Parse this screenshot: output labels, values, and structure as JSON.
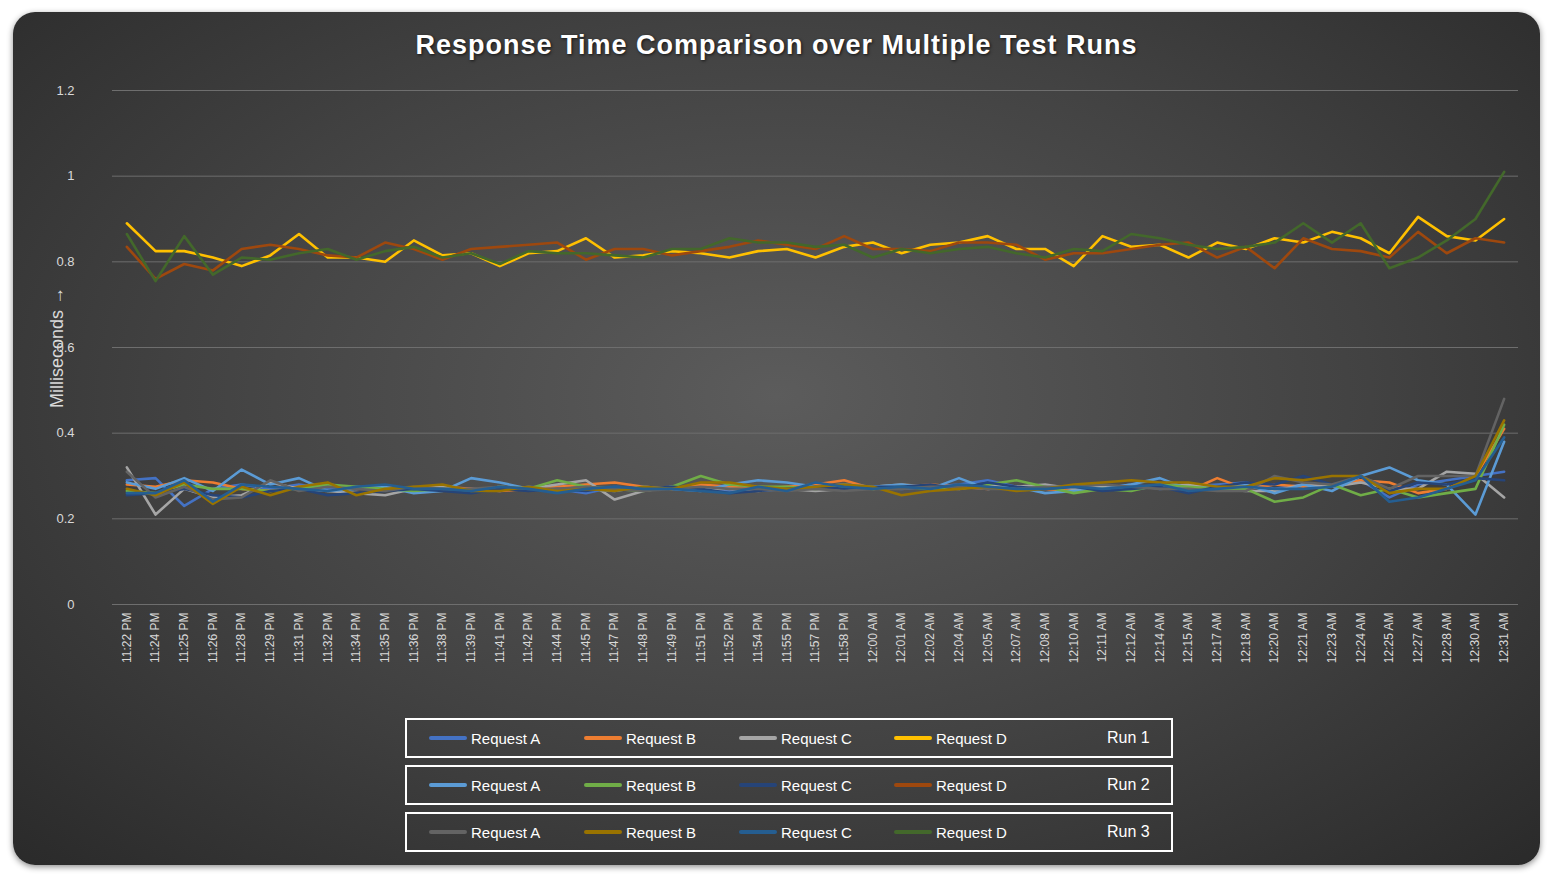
{
  "chart_data": {
    "type": "line",
    "title": "Response Time Comparison over Multiple Test Runs",
    "y_label": "Milliseconds",
    "x": [
      "11:22 PM",
      "11:24 PM",
      "11:25 PM",
      "11:26 PM",
      "11:28 PM",
      "11:29 PM",
      "11:31 PM",
      "11:32 PM",
      "11:34 PM",
      "11:35 PM",
      "11:36 PM",
      "11:38 PM",
      "11:39 PM",
      "11:41 PM",
      "11:42 PM",
      "11:44 PM",
      "11:45 PM",
      "11:47 PM",
      "11:48 PM",
      "11:49 PM",
      "11:51 PM",
      "11:52 PM",
      "11:54 PM",
      "11:55 PM",
      "11:57 PM",
      "11:58 PM",
      "12:00 AM",
      "12:01 AM",
      "12:02 AM",
      "12:04 AM",
      "12:05 AM",
      "12:07 AM",
      "12:08 AM",
      "12:10 AM",
      "12:11 AM",
      "12:12 AM",
      "12:14 AM",
      "12:15 AM",
      "12:17 AM",
      "12:18 AM",
      "12:20 AM",
      "12:21 AM",
      "12:23 AM",
      "12:24 AM",
      "12:25 AM",
      "12:27 AM",
      "12:28 AM",
      "12:30 AM",
      "12:31 AM"
    ],
    "ylim": [
      0,
      1.2
    ],
    "yticks": [
      0,
      0.2,
      0.4,
      0.6,
      0.8,
      1,
      1.2
    ],
    "grid": true,
    "legend": "bottom",
    "series": [
      {
        "name": "Request A",
        "run": "Run 1",
        "color": "#4472c4",
        "values": [
          0.29,
          0.295,
          0.23,
          0.27,
          0.28,
          0.27,
          0.28,
          0.27,
          0.275,
          0.27,
          0.265,
          0.27,
          0.27,
          0.265,
          0.275,
          0.27,
          0.26,
          0.275,
          0.27,
          0.275,
          0.27,
          0.265,
          0.275,
          0.27,
          0.28,
          0.275,
          0.275,
          0.27,
          0.275,
          0.28,
          0.29,
          0.275,
          0.27,
          0.275,
          0.27,
          0.28,
          0.27,
          0.275,
          0.28,
          0.285,
          0.27,
          0.28,
          0.275,
          0.29,
          0.25,
          0.28,
          0.29,
          0.3,
          0.31
        ]
      },
      {
        "name": "Request B",
        "run": "Run 1",
        "color": "#ed7d31",
        "values": [
          0.28,
          0.275,
          0.29,
          0.285,
          0.27,
          0.265,
          0.275,
          0.28,
          0.27,
          0.275,
          0.27,
          0.275,
          0.27,
          0.265,
          0.27,
          0.275,
          0.28,
          0.285,
          0.275,
          0.27,
          0.28,
          0.275,
          0.27,
          0.275,
          0.28,
          0.29,
          0.27,
          0.275,
          0.28,
          0.275,
          0.27,
          0.275,
          0.27,
          0.265,
          0.275,
          0.27,
          0.28,
          0.265,
          0.295,
          0.27,
          0.28,
          0.275,
          0.28,
          0.29,
          0.285,
          0.26,
          0.27,
          0.3,
          0.41
        ]
      },
      {
        "name": "Request C",
        "run": "Run 1",
        "color": "#a5a5a5",
        "values": [
          0.32,
          0.21,
          0.27,
          0.25,
          0.255,
          0.285,
          0.27,
          0.265,
          0.26,
          0.255,
          0.27,
          0.275,
          0.265,
          0.275,
          0.27,
          0.28,
          0.29,
          0.245,
          0.265,
          0.275,
          0.27,
          0.27,
          0.265,
          0.27,
          0.265,
          0.27,
          0.275,
          0.28,
          0.275,
          0.27,
          0.28,
          0.275,
          0.28,
          0.27,
          0.275,
          0.27,
          0.275,
          0.28,
          0.27,
          0.265,
          0.265,
          0.28,
          0.275,
          0.285,
          0.27,
          0.27,
          0.31,
          0.305,
          0.25
        ]
      },
      {
        "name": "Request D",
        "run": "Run 1",
        "color": "#ffc000",
        "values": [
          0.89,
          0.825,
          0.825,
          0.81,
          0.79,
          0.815,
          0.865,
          0.81,
          0.81,
          0.8,
          0.85,
          0.815,
          0.82,
          0.79,
          0.82,
          0.825,
          0.855,
          0.81,
          0.815,
          0.825,
          0.82,
          0.81,
          0.825,
          0.83,
          0.81,
          0.835,
          0.845,
          0.82,
          0.84,
          0.845,
          0.86,
          0.83,
          0.83,
          0.79,
          0.86,
          0.835,
          0.84,
          0.81,
          0.845,
          0.83,
          0.855,
          0.845,
          0.87,
          0.855,
          0.82,
          0.905,
          0.86,
          0.85,
          0.9
        ]
      },
      {
        "name": "Request A",
        "run": "Run 2",
        "color": "#5b9bd5",
        "values": [
          0.285,
          0.27,
          0.295,
          0.265,
          0.315,
          0.28,
          0.295,
          0.265,
          0.27,
          0.275,
          0.26,
          0.265,
          0.295,
          0.285,
          0.27,
          0.265,
          0.27,
          0.265,
          0.275,
          0.27,
          0.265,
          0.28,
          0.29,
          0.285,
          0.275,
          0.28,
          0.275,
          0.28,
          0.27,
          0.295,
          0.27,
          0.275,
          0.26,
          0.265,
          0.27,
          0.28,
          0.295,
          0.27,
          0.275,
          0.28,
          0.26,
          0.28,
          0.265,
          0.3,
          0.32,
          0.29,
          0.28,
          0.21,
          0.38
        ]
      },
      {
        "name": "Request B",
        "run": "Run 2",
        "color": "#70ad47",
        "values": [
          0.265,
          0.26,
          0.28,
          0.27,
          0.27,
          0.265,
          0.27,
          0.28,
          0.275,
          0.27,
          0.265,
          0.27,
          0.265,
          0.275,
          0.27,
          0.29,
          0.275,
          0.27,
          0.265,
          0.275,
          0.3,
          0.28,
          0.275,
          0.275,
          0.27,
          0.275,
          0.27,
          0.275,
          0.27,
          0.275,
          0.28,
          0.29,
          0.275,
          0.26,
          0.27,
          0.265,
          0.28,
          0.275,
          0.27,
          0.27,
          0.24,
          0.25,
          0.28,
          0.255,
          0.27,
          0.25,
          0.26,
          0.27,
          0.42
        ]
      },
      {
        "name": "Request C",
        "run": "Run 2",
        "color": "#264478",
        "values": [
          0.255,
          0.26,
          0.27,
          0.255,
          0.25,
          0.265,
          0.27,
          0.255,
          0.26,
          0.265,
          0.27,
          0.265,
          0.26,
          0.27,
          0.265,
          0.27,
          0.265,
          0.275,
          0.27,
          0.275,
          0.27,
          0.26,
          0.265,
          0.27,
          0.275,
          0.27,
          0.275,
          0.275,
          0.28,
          0.27,
          0.285,
          0.275,
          0.27,
          0.275,
          0.265,
          0.27,
          0.275,
          0.26,
          0.275,
          0.285,
          0.28,
          0.3,
          0.28,
          0.3,
          0.265,
          0.285,
          0.28,
          0.295,
          0.29
        ]
      },
      {
        "name": "Request D",
        "run": "Run 2",
        "color": "#9e480e",
        "values": [
          0.835,
          0.76,
          0.795,
          0.78,
          0.83,
          0.84,
          0.83,
          0.815,
          0.81,
          0.845,
          0.83,
          0.805,
          0.83,
          0.835,
          0.84,
          0.845,
          0.805,
          0.83,
          0.83,
          0.815,
          0.825,
          0.835,
          0.85,
          0.84,
          0.83,
          0.86,
          0.83,
          0.83,
          0.825,
          0.845,
          0.845,
          0.84,
          0.805,
          0.82,
          0.82,
          0.83,
          0.84,
          0.845,
          0.81,
          0.835,
          0.785,
          0.855,
          0.83,
          0.825,
          0.81,
          0.87,
          0.82,
          0.855,
          0.845
        ]
      },
      {
        "name": "Request A",
        "run": "Run 3",
        "color": "#636363",
        "values": [
          0.31,
          0.25,
          0.275,
          0.245,
          0.25,
          0.29,
          0.265,
          0.275,
          0.27,
          0.265,
          0.275,
          0.27,
          0.27,
          0.275,
          0.27,
          0.27,
          0.275,
          0.27,
          0.265,
          0.27,
          0.275,
          0.27,
          0.27,
          0.265,
          0.27,
          0.265,
          0.27,
          0.27,
          0.275,
          0.275,
          0.27,
          0.27,
          0.275,
          0.275,
          0.28,
          0.275,
          0.27,
          0.27,
          0.265,
          0.265,
          0.3,
          0.285,
          0.28,
          0.3,
          0.27,
          0.3,
          0.3,
          0.3,
          0.48
        ]
      },
      {
        "name": "Request B",
        "run": "Run 3",
        "color": "#997300",
        "values": [
          0.27,
          0.255,
          0.285,
          0.235,
          0.275,
          0.255,
          0.275,
          0.285,
          0.255,
          0.27,
          0.275,
          0.28,
          0.265,
          0.265,
          0.275,
          0.265,
          0.27,
          0.265,
          0.275,
          0.27,
          0.285,
          0.285,
          0.275,
          0.27,
          0.275,
          0.28,
          0.275,
          0.255,
          0.265,
          0.27,
          0.275,
          0.265,
          0.27,
          0.28,
          0.285,
          0.29,
          0.285,
          0.285,
          0.275,
          0.275,
          0.295,
          0.29,
          0.3,
          0.3,
          0.26,
          0.27,
          0.27,
          0.3,
          0.43
        ]
      },
      {
        "name": "Request C",
        "run": "Run 3",
        "color": "#255e91",
        "values": [
          0.26,
          0.26,
          0.29,
          0.24,
          0.28,
          0.275,
          0.27,
          0.265,
          0.275,
          0.28,
          0.27,
          0.27,
          0.265,
          0.275,
          0.27,
          0.26,
          0.27,
          0.275,
          0.27,
          0.27,
          0.265,
          0.26,
          0.275,
          0.265,
          0.285,
          0.275,
          0.27,
          0.275,
          0.27,
          0.28,
          0.275,
          0.27,
          0.27,
          0.275,
          0.27,
          0.275,
          0.28,
          0.265,
          0.27,
          0.275,
          0.27,
          0.27,
          0.275,
          0.3,
          0.24,
          0.25,
          0.27,
          0.29,
          0.39
        ]
      },
      {
        "name": "Request D",
        "run": "Run 3",
        "color": "#43682b",
        "values": [
          0.865,
          0.755,
          0.86,
          0.77,
          0.81,
          0.805,
          0.82,
          0.83,
          0.805,
          0.825,
          0.835,
          0.81,
          0.82,
          0.795,
          0.825,
          0.82,
          0.82,
          0.815,
          0.81,
          0.83,
          0.83,
          0.855,
          0.845,
          0.845,
          0.835,
          0.84,
          0.81,
          0.83,
          0.82,
          0.83,
          0.835,
          0.82,
          0.81,
          0.83,
          0.825,
          0.865,
          0.855,
          0.84,
          0.83,
          0.835,
          0.845,
          0.89,
          0.845,
          0.89,
          0.785,
          0.81,
          0.85,
          0.9,
          1.01
        ]
      }
    ]
  }
}
